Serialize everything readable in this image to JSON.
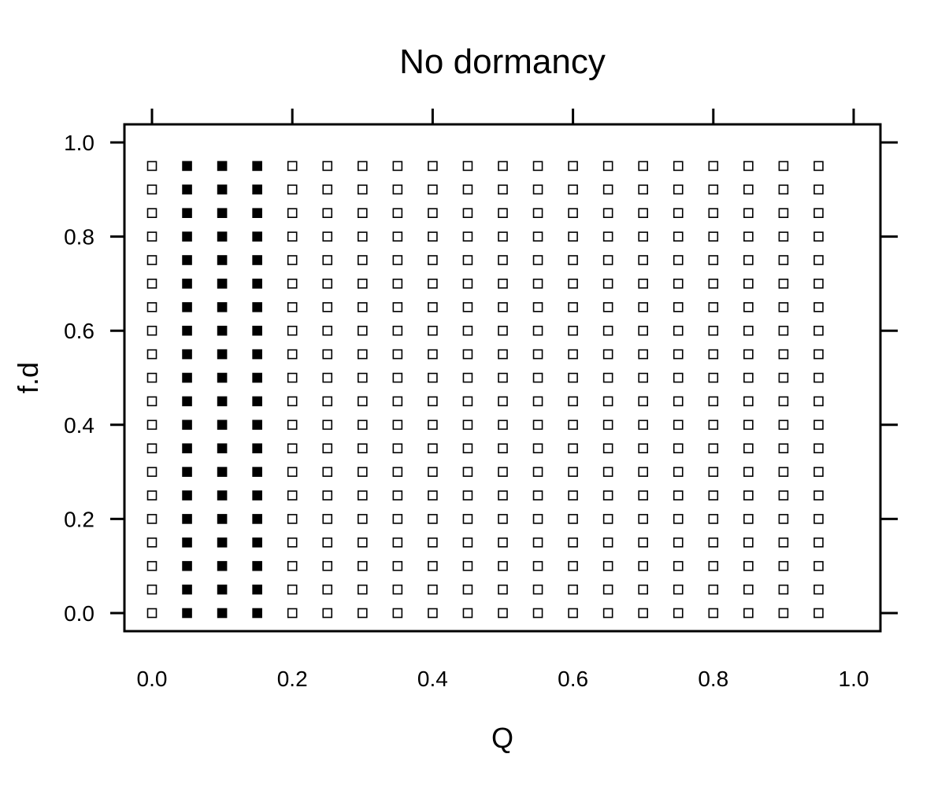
{
  "chart_data": {
    "type": "scatter",
    "title": "No dormancy",
    "xlabel": "Q",
    "ylabel": "f.d",
    "xlim": [
      0.0,
      1.0
    ],
    "ylim": [
      0.0,
      1.0
    ],
    "x_ticks": [
      "0.0",
      "0.2",
      "0.4",
      "0.6",
      "0.8",
      "1.0"
    ],
    "y_ticks": [
      "0.0",
      "0.2",
      "0.4",
      "0.6",
      "0.8",
      "1.0"
    ],
    "grid": false,
    "marker": "square",
    "x_values": [
      0.0,
      0.05,
      0.1,
      0.15,
      0.2,
      0.25,
      0.3,
      0.35,
      0.4,
      0.45,
      0.5,
      0.55,
      0.6,
      0.65,
      0.7,
      0.75,
      0.8,
      0.85,
      0.9,
      0.95
    ],
    "y_values": [
      0.0,
      0.05,
      0.1,
      0.15,
      0.2,
      0.25,
      0.3,
      0.35,
      0.4,
      0.45,
      0.5,
      0.55,
      0.6,
      0.65,
      0.7,
      0.75,
      0.8,
      0.85,
      0.9,
      0.95
    ],
    "filled_x_values": [
      0.05,
      0.1,
      0.15
    ],
    "colors": {
      "filled": "#000000",
      "open_fill": "#ffffff",
      "stroke": "#000000"
    }
  }
}
